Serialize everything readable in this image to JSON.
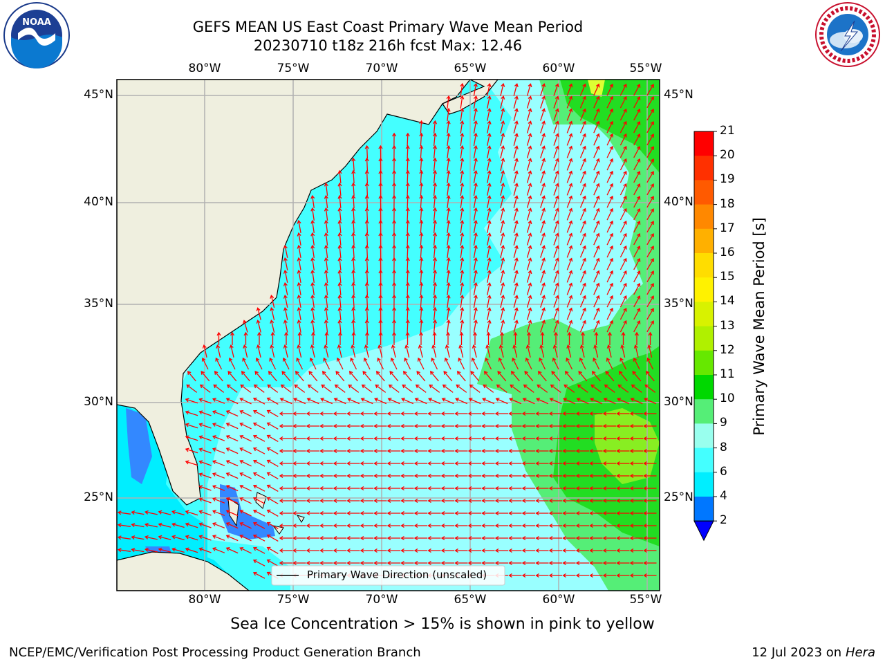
{
  "title_line1": "GEFS MEAN US East Coast Primary Wave Mean Period",
  "title_line2": "20230710 t18z 216h fcst   Max: 12.46",
  "logos": {
    "left": "noaa-logo",
    "right": "national-weather-service-logo"
  },
  "map": {
    "lon_labels": [
      "80°W",
      "75°W",
      "70°W",
      "65°W",
      "60°W",
      "55°W"
    ],
    "lat_labels": [
      "45°N",
      "40°N",
      "35°N",
      "30°N",
      "25°N"
    ],
    "legend_label": "Primary Wave Direction (unscaled)",
    "arrow_color": "#ff0000"
  },
  "colorbar": {
    "title": "Primary Wave Mean Period [s]",
    "levels": [
      "21",
      "20",
      "19",
      "18",
      "17",
      "16",
      "15",
      "14",
      "13",
      "12",
      "11",
      "10",
      "9",
      "8",
      "6",
      "4",
      "2"
    ],
    "colors": [
      "#ff0000",
      "#ff3000",
      "#ff5a00",
      "#ff8800",
      "#ffb000",
      "#ffdd00",
      "#fff200",
      "#d8f200",
      "#b0f000",
      "#66e800",
      "#00d800",
      "#55ee77",
      "#99ffee",
      "#44ffff",
      "#00eeff",
      "#0077ff"
    ],
    "extend_color": "#0000ff"
  },
  "caption": "Sea Ice Concentration > 15% is shown in pink to yellow",
  "footer_left": "NCEP/EMC/Verification Post Processing Product Generation Branch",
  "footer_right_date": "12 Jul 2023 on ",
  "footer_right_host": "Hera"
}
